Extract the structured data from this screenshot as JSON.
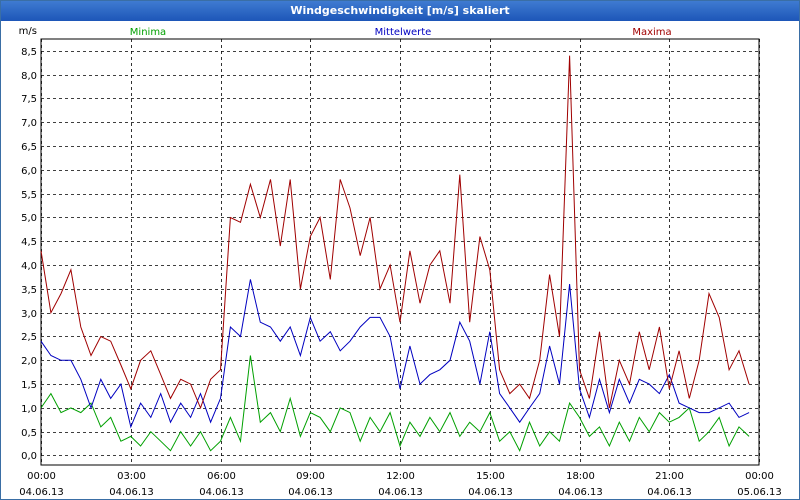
{
  "window": {
    "title": "Windgeschwindigkeit [m/s] skaliert"
  },
  "chart_data": {
    "type": "line",
    "title": "Windgeschwindigkeit [m/s] skaliert",
    "ylabel": "m/s",
    "ylim": [
      -0.2,
      8.75
    ],
    "yticks": [
      0,
      0.5,
      1,
      1.5,
      2,
      2.5,
      3,
      3.5,
      4,
      4.5,
      5,
      5.5,
      6,
      6.5,
      7,
      7.5,
      8,
      8.5
    ],
    "ytick_labels": [
      "0,0",
      "0,5",
      "1,0",
      "1,5",
      "2,0",
      "2,5",
      "3,0",
      "3,5",
      "4,0",
      "4,5",
      "5,0",
      "5,5",
      "6,0",
      "6,5",
      "7,0",
      "7,5",
      "8,0",
      "8,5"
    ],
    "xlim": [
      0,
      24
    ],
    "xticks": [
      0,
      3,
      6,
      9,
      12,
      15,
      18,
      21,
      24
    ],
    "xtick_labels": [
      {
        "time": "00:00",
        "date": "04.06.13"
      },
      {
        "time": "03:00",
        "date": "04.06.13"
      },
      {
        "time": "06:00",
        "date": "04.06.13"
      },
      {
        "time": "09:00",
        "date": "04.06.13"
      },
      {
        "time": "12:00",
        "date": "04.06.13"
      },
      {
        "time": "15:00",
        "date": "04.06.13"
      },
      {
        "time": "18:00",
        "date": "04.06.13"
      },
      {
        "time": "21:00",
        "date": "04.06.13"
      },
      {
        "time": "00:00",
        "date": "05.06.13"
      }
    ],
    "grid": true,
    "series": [
      {
        "name": "Minima",
        "color": "#00a000",
        "x": [
          0,
          0.33,
          0.67,
          1,
          1.33,
          1.67,
          2,
          2.33,
          2.67,
          3,
          3.33,
          3.67,
          4,
          4.33,
          4.67,
          5,
          5.33,
          5.67,
          6,
          6.33,
          6.67,
          7,
          7.33,
          7.67,
          8,
          8.33,
          8.67,
          9,
          9.33,
          9.67,
          10,
          10.33,
          10.67,
          11,
          11.33,
          11.67,
          12,
          12.33,
          12.67,
          13,
          13.33,
          13.67,
          14,
          14.33,
          14.67,
          15,
          15.33,
          15.67,
          16,
          16.33,
          16.67,
          17,
          17.33,
          17.67,
          18,
          18.33,
          18.67,
          19,
          19.33,
          19.67,
          20,
          20.33,
          20.67,
          21,
          21.33,
          21.67,
          22,
          22.33,
          22.67,
          23,
          23.33,
          23.67
        ],
        "values": [
          1.0,
          1.3,
          0.9,
          1.0,
          0.9,
          1.1,
          0.6,
          0.8,
          0.3,
          0.4,
          0.2,
          0.5,
          0.3,
          0.1,
          0.5,
          0.2,
          0.5,
          0.1,
          0.3,
          0.8,
          0.3,
          2.1,
          0.7,
          0.9,
          0.5,
          1.2,
          0.4,
          0.9,
          0.8,
          0.5,
          1.0,
          0.9,
          0.3,
          0.8,
          0.5,
          0.9,
          0.2,
          0.7,
          0.4,
          0.8,
          0.5,
          0.9,
          0.4,
          0.7,
          0.5,
          0.9,
          0.3,
          0.5,
          0.1,
          0.7,
          0.2,
          0.5,
          0.3,
          1.1,
          0.8,
          0.4,
          0.6,
          0.2,
          0.7,
          0.3,
          0.8,
          0.5,
          0.9,
          0.7,
          0.8,
          1.0,
          0.3,
          0.5,
          0.8,
          0.2,
          0.6,
          0.4
        ]
      },
      {
        "name": "Mittelwerte",
        "color": "#0000c0",
        "x": [
          0,
          0.33,
          0.67,
          1,
          1.33,
          1.67,
          2,
          2.33,
          2.67,
          3,
          3.33,
          3.67,
          4,
          4.33,
          4.67,
          5,
          5.33,
          5.67,
          6,
          6.33,
          6.67,
          7,
          7.33,
          7.67,
          8,
          8.33,
          8.67,
          9,
          9.33,
          9.67,
          10,
          10.33,
          10.67,
          11,
          11.33,
          11.67,
          12,
          12.33,
          12.67,
          13,
          13.33,
          13.67,
          14,
          14.33,
          14.67,
          15,
          15.33,
          15.67,
          16,
          16.33,
          16.67,
          17,
          17.33,
          17.67,
          18,
          18.33,
          18.67,
          19,
          19.33,
          19.67,
          20,
          20.33,
          20.67,
          21,
          21.33,
          21.67,
          22,
          22.33,
          22.67,
          23,
          23.33,
          23.67
        ],
        "values": [
          2.4,
          2.1,
          2.0,
          2.0,
          1.6,
          1.0,
          1.6,
          1.2,
          1.5,
          0.6,
          1.1,
          0.8,
          1.3,
          0.7,
          1.1,
          0.8,
          1.3,
          0.7,
          1.2,
          2.7,
          2.5,
          3.7,
          2.8,
          2.7,
          2.4,
          2.7,
          2.1,
          2.9,
          2.4,
          2.6,
          2.2,
          2.4,
          2.7,
          2.9,
          2.9,
          2.5,
          1.4,
          2.3,
          1.5,
          1.7,
          1.8,
          2.0,
          2.8,
          2.4,
          1.5,
          2.6,
          1.3,
          1.0,
          0.7,
          1.0,
          1.3,
          2.3,
          1.5,
          3.6,
          1.4,
          0.8,
          1.6,
          0.9,
          1.6,
          1.1,
          1.6,
          1.5,
          1.3,
          1.7,
          1.1,
          1.0,
          0.9,
          0.9,
          1.0,
          1.1,
          0.8,
          0.9
        ]
      },
      {
        "name": "Maxima",
        "color": "#a00000",
        "x": [
          0,
          0.33,
          0.67,
          1,
          1.33,
          1.67,
          2,
          2.33,
          2.67,
          3,
          3.33,
          3.67,
          4,
          4.33,
          4.67,
          5,
          5.33,
          5.67,
          6,
          6.33,
          6.67,
          7,
          7.33,
          7.67,
          8,
          8.33,
          8.67,
          9,
          9.33,
          9.67,
          10,
          10.33,
          10.67,
          11,
          11.33,
          11.67,
          12,
          12.33,
          12.67,
          13,
          13.33,
          13.67,
          14,
          14.33,
          14.67,
          15,
          15.33,
          15.67,
          16,
          16.33,
          16.67,
          17,
          17.33,
          17.67,
          18,
          18.33,
          18.67,
          19,
          19.33,
          19.67,
          20,
          20.33,
          20.67,
          21,
          21.33,
          21.67,
          22,
          22.33,
          22.67,
          23,
          23.33,
          23.67
        ],
        "values": [
          4.3,
          3.0,
          3.4,
          3.9,
          2.7,
          2.1,
          2.5,
          2.4,
          1.9,
          1.4,
          2.0,
          2.2,
          1.7,
          1.2,
          1.6,
          1.5,
          1.0,
          1.6,
          1.8,
          5.0,
          4.9,
          5.7,
          5.0,
          5.8,
          4.4,
          5.8,
          3.5,
          4.6,
          5.0,
          3.7,
          5.8,
          5.2,
          4.2,
          5.0,
          3.5,
          4.0,
          2.8,
          4.3,
          3.2,
          4.0,
          4.3,
          3.2,
          5.9,
          2.8,
          4.6,
          3.9,
          1.8,
          1.3,
          1.5,
          1.2,
          2.0,
          3.8,
          2.5,
          8.4,
          1.8,
          1.2,
          2.6,
          1.0,
          2.0,
          1.5,
          2.6,
          1.8,
          2.7,
          1.4,
          2.2,
          1.2,
          2.0,
          3.4,
          2.9,
          1.8,
          2.2,
          1.5
        ]
      }
    ]
  }
}
